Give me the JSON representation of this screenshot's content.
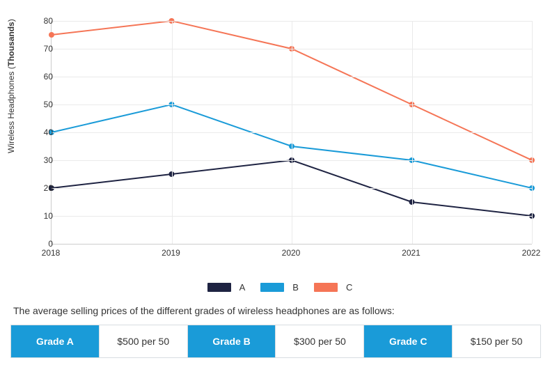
{
  "chart": {
    "type": "line",
    "y_axis": {
      "title_plain": "Wireless Headphones (",
      "title_bold": "Thousands",
      "title_close": ")",
      "min": 0,
      "max": 80,
      "tick_step": 10,
      "ticks": [
        0,
        10,
        20,
        30,
        40,
        50,
        60,
        70,
        80
      ]
    },
    "x_axis": {
      "categories": [
        "2018",
        "2019",
        "2020",
        "2021",
        "2022"
      ]
    },
    "grid_color": "#eaeaea",
    "axis_color": "#cccccc",
    "background_color": "#ffffff",
    "line_width": 2,
    "marker_radius": 4,
    "series": [
      {
        "name": "A",
        "color": "#1e2342",
        "values": [
          20,
          25,
          30,
          15,
          10
        ]
      },
      {
        "name": "B",
        "color": "#1a9bd8",
        "values": [
          40,
          50,
          35,
          30,
          20
        ]
      },
      {
        "name": "C",
        "color": "#f57556",
        "values": [
          75,
          80,
          70,
          50,
          30
        ]
      }
    ],
    "legend": [
      "A",
      "B",
      "C"
    ]
  },
  "intro": "The average selling prices of the different grades of wireless headphones are as follows:",
  "price_table": {
    "header_bg": "#1a9bd8",
    "header_fg": "#ffffff",
    "border_color": "#d7dde1",
    "rows": [
      {
        "label": "Grade A",
        "value": "$500 per 50"
      },
      {
        "label": "Grade B",
        "value": "$300 per 50"
      },
      {
        "label": "Grade C",
        "value": "$150 per 50"
      }
    ]
  },
  "typography": {
    "axis_fontsize": 12,
    "legend_fontsize": 13,
    "body_fontsize": 14
  }
}
